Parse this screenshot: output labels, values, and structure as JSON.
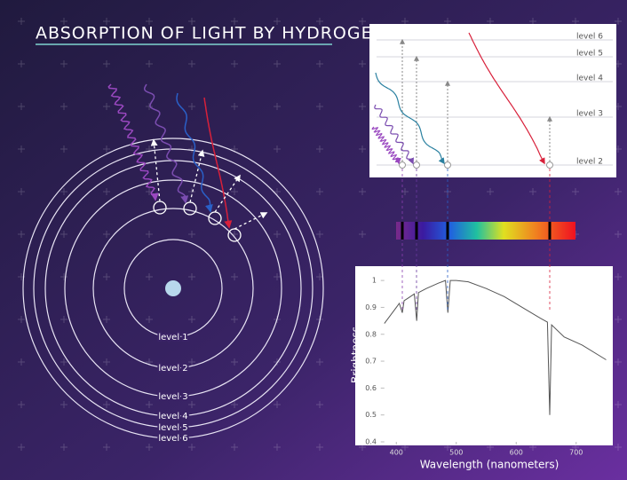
{
  "title": "ABSORPTION OF LIGHT BY HYDROGEN",
  "atom": {
    "levels": [
      "level 1",
      "level 2",
      "level 3",
      "level 4",
      "level 5",
      "level 6"
    ]
  },
  "energy_panel": {
    "levels": [
      "level 6",
      "level 5",
      "level 4",
      "level 3",
      "level 2"
    ]
  },
  "chart_data": {
    "type": "line",
    "x_label": "Wavelength (nanometers)",
    "y_label": "Brightness",
    "x": [
      380,
      400,
      405,
      410,
      413,
      420,
      430,
      434,
      437,
      450,
      470,
      482,
      486,
      490,
      500,
      520,
      550,
      580,
      610,
      640,
      652,
      656,
      659,
      680,
      710,
      750
    ],
    "series": [
      {
        "name": "Brightness",
        "color": "#555555",
        "values": [
          0.84,
          0.9,
          0.915,
          0.88,
          0.925,
          0.935,
          0.95,
          0.85,
          0.955,
          0.97,
          0.99,
          1.0,
          0.88,
          1.0,
          1.0,
          0.995,
          0.97,
          0.94,
          0.9,
          0.86,
          0.845,
          0.5,
          0.835,
          0.79,
          0.76,
          0.705
        ]
      }
    ],
    "xlim": [
      380,
      752
    ],
    "ylim": [
      0.4,
      1.04
    ],
    "xticks": [
      400,
      500,
      600,
      700
    ],
    "yticks": [
      0.4,
      0.5,
      0.6,
      0.7,
      0.8,
      0.9,
      1
    ]
  }
}
